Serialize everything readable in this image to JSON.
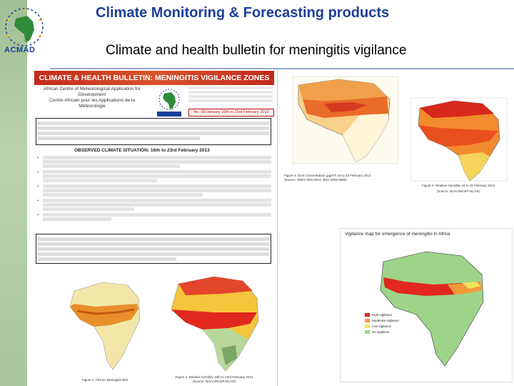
{
  "header": {
    "title": "Climate Monitoring & Forecasting  products",
    "subtitle": "Climate and health bulletin for meningitis vigilance",
    "logo_text": "ACMAD"
  },
  "bulletin": {
    "banner": "CLIMATE & HEALTH BULLETIN: MENINGITIS VIGILANCE ZONES",
    "org_en": "African Centre of Meteorological Application for Development",
    "org_fr": "Centre Africain pour les Applications de la Météorologie",
    "issue": "No. 00/January 16th to 23rd February 2013",
    "observed_heading": "OBSERVED CLIMATE SITUATION: 16th to 23rd February 2013",
    "fig1_caption": "Figure 1: Africa's Meningitis Belt",
    "fig_relhum_caption": "Figure 2: Relative humidity 16th to 23rd February 2013",
    "fig_relhum_source": "(Source: NOAA/NCEP-NCAR)"
  },
  "right_panel": {
    "dust_caption": "Figure 3: Dust Concentration (µg/m³) 16 to 23 February 2013",
    "dust_source": "(Source: WMO SDS-WAS, BSC-DREAM8b)",
    "humidity_caption": "Figure 4: Relative Humidity 16 to 23 February 2013",
    "humidity_source": "(Source: NOAA/NCEP-NCAR)",
    "vigilance_title": "Vigilance map for emergence of meningitis in Africa",
    "legend": [
      {
        "label": "High vigilance",
        "color": "#e0281f"
      },
      {
        "label": "Moderate vigilance",
        "color": "#f29a3a"
      },
      {
        "label": "Low vigilance",
        "color": "#f1e55a"
      },
      {
        "label": "No vigilance",
        "color": "#9ed38a"
      }
    ]
  }
}
